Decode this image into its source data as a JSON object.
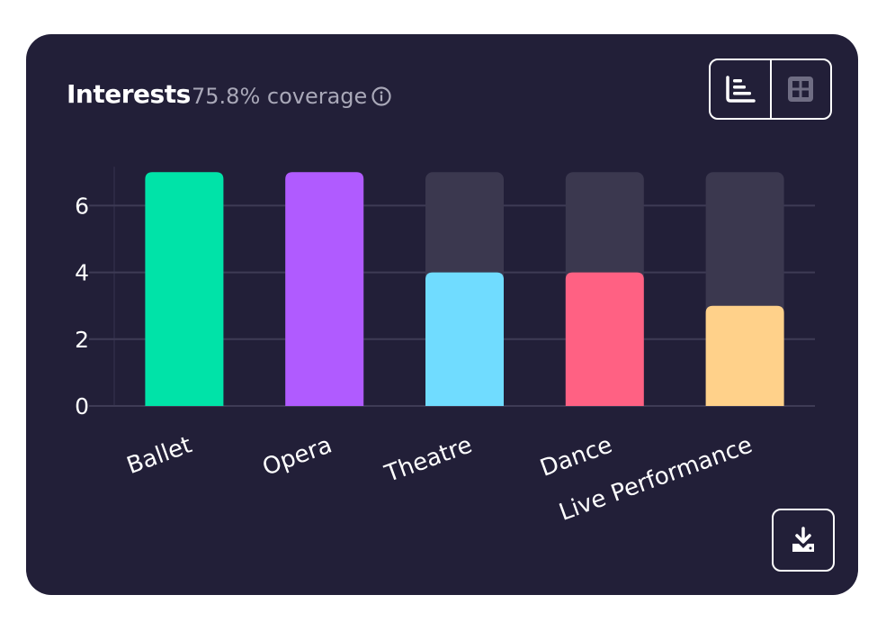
{
  "header": {
    "title": "Interests",
    "coverage": "75.8% coverage",
    "info_icon": "info-circle-icon"
  },
  "toolbar": {
    "view_bar_icon": "bar-chart-icon",
    "view_grid_icon": "grid-view-icon",
    "download_icon": "download-icon"
  },
  "colors": {
    "card_bg": "#221f38",
    "bar_track": "#3b384f",
    "grid": "#3e3b55"
  },
  "chart_data": {
    "type": "bar",
    "categories": [
      "Ballet",
      "Opera",
      "Theatre",
      "Dance",
      "Live Performance"
    ],
    "values": [
      7,
      7,
      4,
      4,
      3
    ],
    "colors": [
      "#00e3a8",
      "#b05bff",
      "#70dcff",
      "#ff6183",
      "#ffd18a"
    ],
    "max_track": 7,
    "ylim": [
      0,
      7
    ],
    "yticks": [
      0,
      2,
      4,
      6
    ],
    "grid": true
  }
}
